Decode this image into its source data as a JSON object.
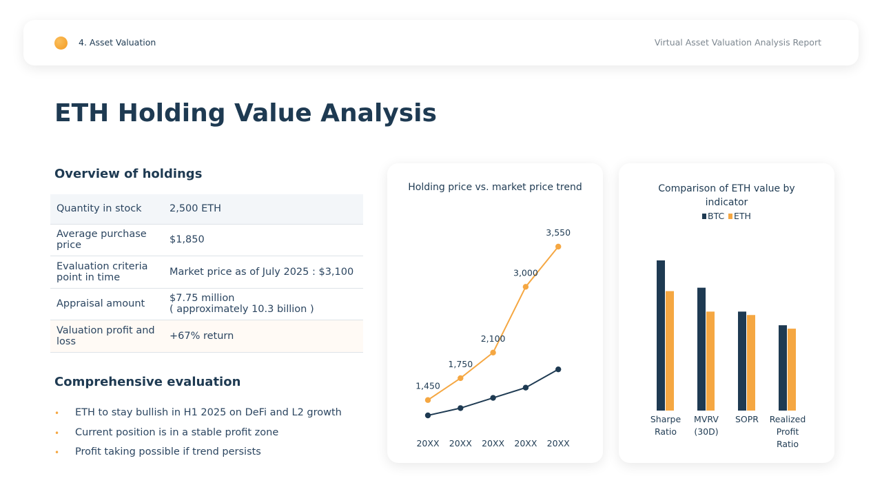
{
  "header": {
    "section": "4. Asset Valuation",
    "report": "Virtual Asset Valuation Analysis Report"
  },
  "title": "ETH Holding Value Analysis",
  "overview": {
    "heading": "Overview of holdings",
    "rows": [
      [
        "Quantity in stock",
        "2,500 ETH"
      ],
      [
        "Average purchase price",
        "$1,850"
      ],
      [
        "Evaluation criteria point in time",
        "Market price as of July 2025 : $3,100"
      ],
      [
        "Appraisal amount",
        "$7.75 million",
        "( approximately 10.3 billion )"
      ],
      [
        "Valuation profit and loss",
        "+67% return"
      ]
    ]
  },
  "evaluation": {
    "heading": "Comprehensive evaluation",
    "items": [
      "ETH to stay bullish in H1 2025 on DeFi and L2 growth",
      "Current position is in a stable profit zone",
      "Profit taking possible if trend persists"
    ]
  },
  "chart_data": [
    {
      "type": "line",
      "title": "Holding price vs. market price trend",
      "categories": [
        "20XX",
        "20XX",
        "20XX",
        "20XX",
        "20XX"
      ],
      "series": [
        {
          "color": "#f5a742",
          "values": [
            1450,
            1750,
            2100,
            3000,
            3550
          ],
          "value_labels": [
            "1,450",
            "1,750",
            "2,100",
            "3,000",
            "3,550"
          ]
        },
        {
          "color": "#1e3a52",
          "values": [
            1240,
            1340,
            1480,
            1620,
            1870
          ]
        }
      ]
    },
    {
      "type": "bar",
      "title": "Comparison of ETH value by indicator",
      "categories": [
        "Sharpe Ratio",
        "MVRV (30D)",
        "SOPR",
        "Realized Profit Ratio"
      ],
      "series": [
        {
          "name": "BTC",
          "color": "#1e3a52",
          "values": [
            2.2,
            1.8,
            1.45,
            1.25
          ]
        },
        {
          "name": "ETH",
          "color": "#f5a742",
          "values": [
            1.75,
            1.45,
            1.4,
            1.2
          ]
        }
      ]
    }
  ]
}
